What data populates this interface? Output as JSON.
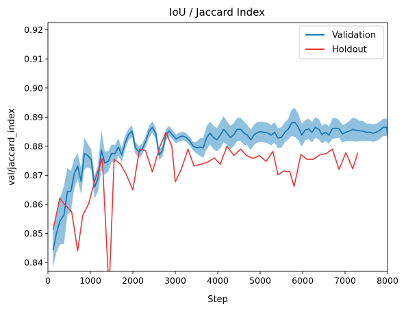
{
  "chart_data": {
    "type": "line",
    "title": "IoU / Jaccard Index",
    "xlabel": "Step",
    "ylabel": "val/jaccard_index",
    "xlim": [
      0,
      8000
    ],
    "ylim": [
      0.837,
      0.9225
    ],
    "xticks": [
      0,
      1000,
      2000,
      3000,
      4000,
      5000,
      6000,
      7000,
      8000
    ],
    "yticks": [
      0.84,
      0.85,
      0.86,
      0.87,
      0.88,
      0.89,
      0.9,
      0.91,
      0.92
    ],
    "legend_position": "upper-right",
    "grid": false,
    "series": [
      {
        "name": "Validation",
        "color": "#1f77b4",
        "band_color": "#6baed6",
        "points": [
          [
            120,
            0.8443
          ],
          [
            200,
            0.85
          ],
          [
            280,
            0.8542
          ],
          [
            380,
            0.8565
          ],
          [
            460,
            0.8645
          ],
          [
            540,
            0.8645
          ],
          [
            620,
            0.8705
          ],
          [
            700,
            0.8732
          ],
          [
            780,
            0.868
          ],
          [
            860,
            0.8775
          ],
          [
            940,
            0.8768
          ],
          [
            1020,
            0.8755
          ],
          [
            1100,
            0.866
          ],
          [
            1180,
            0.869
          ],
          [
            1260,
            0.8787
          ],
          [
            1340,
            0.8742
          ],
          [
            1420,
            0.8748
          ],
          [
            1500,
            0.8775
          ],
          [
            1580,
            0.8775
          ],
          [
            1660,
            0.8797
          ],
          [
            1740,
            0.877
          ],
          [
            1820,
            0.8812
          ],
          [
            1900,
            0.884
          ],
          [
            1980,
            0.8852
          ],
          [
            2060,
            0.8795
          ],
          [
            2140,
            0.878
          ],
          [
            2220,
            0.879
          ],
          [
            2300,
            0.8815
          ],
          [
            2380,
            0.885
          ],
          [
            2460,
            0.8865
          ],
          [
            2540,
            0.8845
          ],
          [
            2620,
            0.877
          ],
          [
            2700,
            0.8785
          ],
          [
            2780,
            0.884
          ],
          [
            2860,
            0.8852
          ],
          [
            2940,
            0.8838
          ],
          [
            3020,
            0.8825
          ],
          [
            3100,
            0.8832
          ],
          [
            3180,
            0.8835
          ],
          [
            3260,
            0.883
          ],
          [
            3340,
            0.8818
          ],
          [
            3420,
            0.88
          ],
          [
            3500,
            0.8795
          ],
          [
            3580,
            0.8797
          ],
          [
            3660,
            0.8795
          ],
          [
            3740,
            0.883
          ],
          [
            3820,
            0.8845
          ],
          [
            3900,
            0.883
          ],
          [
            3980,
            0.8822
          ],
          [
            4060,
            0.8838
          ],
          [
            4140,
            0.8858
          ],
          [
            4220,
            0.8845
          ],
          [
            4300,
            0.883
          ],
          [
            4380,
            0.884
          ],
          [
            4460,
            0.8858
          ],
          [
            4540,
            0.8858
          ],
          [
            4620,
            0.8845
          ],
          [
            4700,
            0.8838
          ],
          [
            4780,
            0.8822
          ],
          [
            4860,
            0.884
          ],
          [
            4940,
            0.8848
          ],
          [
            5020,
            0.885
          ],
          [
            5100,
            0.8848
          ],
          [
            5180,
            0.8845
          ],
          [
            5260,
            0.8838
          ],
          [
            5340,
            0.8848
          ],
          [
            5420,
            0.8828
          ],
          [
            5500,
            0.883
          ],
          [
            5580,
            0.8848
          ],
          [
            5660,
            0.8858
          ],
          [
            5740,
            0.888
          ],
          [
            5820,
            0.8882
          ],
          [
            5900,
            0.8865
          ],
          [
            5980,
            0.8838
          ],
          [
            6060,
            0.8855
          ],
          [
            6140,
            0.886
          ],
          [
            6220,
            0.8848
          ],
          [
            6300,
            0.8865
          ],
          [
            6380,
            0.8858
          ],
          [
            6460,
            0.884
          ],
          [
            6540,
            0.8848
          ],
          [
            6620,
            0.8838
          ],
          [
            6700,
            0.886
          ],
          [
            6780,
            0.8862
          ],
          [
            6860,
            0.886
          ],
          [
            6940,
            0.8842
          ],
          [
            7020,
            0.8848
          ],
          [
            7100,
            0.8852
          ],
          [
            7180,
            0.8858
          ],
          [
            7260,
            0.8855
          ],
          [
            7340,
            0.8853
          ],
          [
            7420,
            0.8852
          ],
          [
            7500,
            0.8848
          ],
          [
            7580,
            0.8848
          ],
          [
            7660,
            0.8845
          ],
          [
            7740,
            0.8848
          ],
          [
            7820,
            0.8855
          ],
          [
            7900,
            0.8865
          ],
          [
            7980,
            0.8865
          ],
          [
            8000,
            0.884
          ]
        ],
        "band_halfwidth": [
          0.006,
          0.0065,
          0.008,
          0.01,
          0.008,
          0.007,
          0.005,
          0.0045,
          0.0045,
          0.0055,
          0.004,
          0.0035,
          0.004,
          0.0045,
          0.007,
          0.004,
          0.0035,
          0.003,
          0.003,
          0.003,
          0.0025,
          0.0025,
          0.002,
          0.002,
          0.002,
          0.002,
          0.002,
          0.0018,
          0.002,
          0.002,
          0.002,
          0.0018,
          0.002,
          0.002,
          0.0018,
          0.0015,
          0.0015,
          0.0015,
          0.0015,
          0.0015,
          0.0015,
          0.0015,
          0.002,
          0.003,
          0.0035,
          0.004,
          0.004,
          0.004,
          0.004,
          0.0045,
          0.0045,
          0.004,
          0.004,
          0.004,
          0.004,
          0.004,
          0.004,
          0.0035,
          0.0035,
          0.0035,
          0.0035,
          0.0035,
          0.0035,
          0.0035,
          0.0035,
          0.0035,
          0.0035,
          0.0035,
          0.0035,
          0.0035,
          0.0045,
          0.005,
          0.0045,
          0.004,
          0.0035,
          0.0035,
          0.0035,
          0.0035,
          0.0035,
          0.003,
          0.003,
          0.003,
          0.0035,
          0.0035,
          0.003,
          0.003,
          0.003,
          0.0035,
          0.004,
          0.004,
          0.0035,
          0.0035,
          0.003,
          0.003,
          0.003,
          0.003,
          0.003,
          0.003,
          0.003,
          0.003
        ]
      },
      {
        "name": "Holdout",
        "color": "#ee3333",
        "points": [
          [
            120,
            0.8512
          ],
          [
            280,
            0.8622
          ],
          [
            380,
            0.8602
          ],
          [
            560,
            0.8575
          ],
          [
            700,
            0.844
          ],
          [
            820,
            0.8562
          ],
          [
            960,
            0.8602
          ],
          [
            1100,
            0.868
          ],
          [
            1280,
            0.8758
          ],
          [
            1440,
            0.83
          ],
          [
            1560,
            0.8755
          ],
          [
            1700,
            0.874
          ],
          [
            1840,
            0.8705
          ],
          [
            2000,
            0.865
          ],
          [
            2160,
            0.879
          ],
          [
            2300,
            0.8785
          ],
          [
            2460,
            0.8712
          ],
          [
            2640,
            0.88
          ],
          [
            2780,
            0.8848
          ],
          [
            2920,
            0.88
          ],
          [
            3000,
            0.8678
          ],
          [
            3140,
            0.872
          ],
          [
            3300,
            0.879
          ],
          [
            3440,
            0.8732
          ],
          [
            3600,
            0.8738
          ],
          [
            3760,
            0.8745
          ],
          [
            3920,
            0.876
          ],
          [
            4060,
            0.8738
          ],
          [
            4220,
            0.88
          ],
          [
            4380,
            0.8768
          ],
          [
            4540,
            0.879
          ],
          [
            4680,
            0.8768
          ],
          [
            4840,
            0.8758
          ],
          [
            4980,
            0.8768
          ],
          [
            5140,
            0.8748
          ],
          [
            5300,
            0.8782
          ],
          [
            5420,
            0.8702
          ],
          [
            5560,
            0.8715
          ],
          [
            5700,
            0.8712
          ],
          [
            5800,
            0.8662
          ],
          [
            5960,
            0.8772
          ],
          [
            6100,
            0.8755
          ],
          [
            6260,
            0.8755
          ],
          [
            6400,
            0.877
          ],
          [
            6560,
            0.8775
          ],
          [
            6700,
            0.879
          ],
          [
            6860,
            0.872
          ],
          [
            7020,
            0.8778
          ],
          [
            7180,
            0.8722
          ],
          [
            7300,
            0.8778
          ]
        ]
      }
    ]
  }
}
